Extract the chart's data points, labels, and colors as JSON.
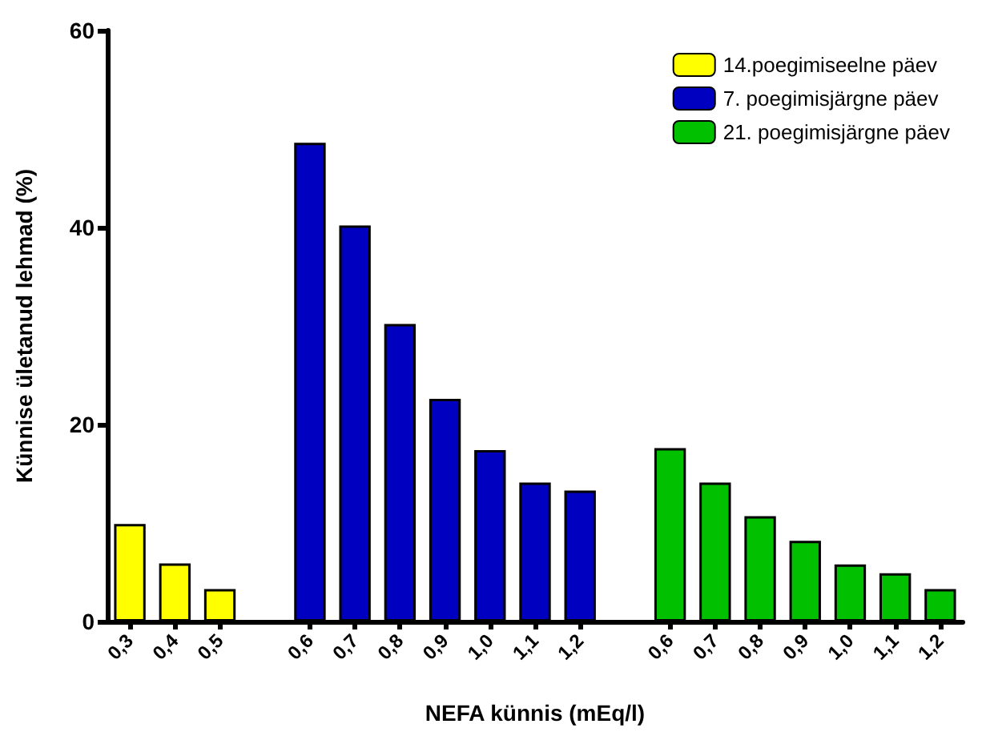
{
  "chart_data": {
    "type": "bar",
    "xlabel": "NEFA künnis (mEq/l)",
    "ylabel": "Künnise ületanud lehmad (%)",
    "categories": [
      "0,3",
      "0,4",
      "0,5",
      null,
      "0,6",
      "0,7",
      "0,8",
      "0,9",
      "1,0",
      "1,1",
      "1,2",
      null,
      "0,6",
      "0,7",
      "0,8",
      "0,9",
      "1,0",
      "1,1",
      "1,2"
    ],
    "series": [
      {
        "name": "14.poegimiseelne päev",
        "color": "#ffff00",
        "values": [
          9.9,
          5.9,
          3.3,
          null,
          null,
          null,
          null,
          null,
          null,
          null,
          null,
          null,
          null,
          null,
          null,
          null,
          null,
          null,
          null
        ]
      },
      {
        "name": "7. poegimisjärgne päev",
        "color": "#0000c0",
        "values": [
          null,
          null,
          null,
          null,
          48.6,
          40.2,
          30.2,
          22.6,
          17.4,
          14.1,
          13.3,
          null,
          null,
          null,
          null,
          null,
          null,
          null,
          null
        ]
      },
      {
        "name": "21. poegimisjärgne päev",
        "color": "#00c000",
        "values": [
          null,
          null,
          null,
          null,
          null,
          null,
          null,
          null,
          null,
          null,
          null,
          null,
          17.6,
          14.1,
          10.7,
          8.2,
          5.8,
          4.9,
          3.3
        ]
      }
    ],
    "ylim": [
      0,
      60
    ],
    "yticks": [
      0,
      20,
      40,
      60
    ],
    "grid": false,
    "legend": "top right"
  }
}
